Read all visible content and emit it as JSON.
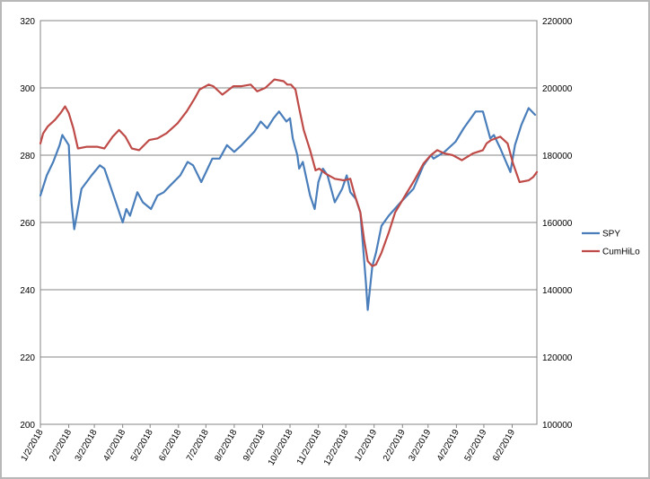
{
  "chart_data": {
    "type": "line",
    "y_axis_left": {
      "min": 200,
      "max": 320,
      "step": 20,
      "ticks": [
        "200",
        "220",
        "240",
        "260",
        "280",
        "300",
        "320"
      ]
    },
    "y_axis_right": {
      "min": 100000,
      "max": 220000,
      "step": 20000,
      "ticks": [
        "100000",
        "120000",
        "140000",
        "160000",
        "180000",
        "200000",
        "220000"
      ]
    },
    "x_tick_labels": [
      "1/2/2018",
      "2/2/2018",
      "3/2/2018",
      "4/2/2018",
      "5/2/2018",
      "6/2/2018",
      "7/2/2018",
      "8/2/2018",
      "9/2/2018",
      "10/2/2018",
      "11/2/2018",
      "12/2/2018",
      "1/2/2019",
      "2/2/2019",
      "3/2/2019",
      "4/2/2019",
      "5/2/2019",
      "6/2/2019"
    ],
    "grid": "horizontal",
    "legend_position": "right",
    "series": [
      {
        "name": "SPY",
        "color": "#4a7ebb",
        "axis": "left",
        "x": [
          "2018-01-02",
          "2018-01-09",
          "2018-01-16",
          "2018-01-23",
          "2018-01-26",
          "2018-02-02",
          "2018-02-05",
          "2018-02-08",
          "2018-02-16",
          "2018-02-27",
          "2018-03-08",
          "2018-03-13",
          "2018-03-23",
          "2018-04-02",
          "2018-04-06",
          "2018-04-10",
          "2018-04-18",
          "2018-04-24",
          "2018-05-03",
          "2018-05-10",
          "2018-05-17",
          "2018-05-24",
          "2018-06-04",
          "2018-06-12",
          "2018-06-18",
          "2018-06-27",
          "2018-07-09",
          "2018-07-17",
          "2018-07-25",
          "2018-08-02",
          "2018-08-10",
          "2018-08-17",
          "2018-08-24",
          "2018-08-31",
          "2018-09-07",
          "2018-09-14",
          "2018-09-20",
          "2018-09-28",
          "2018-10-02",
          "2018-10-05",
          "2018-10-10",
          "2018-10-12",
          "2018-10-16",
          "2018-10-24",
          "2018-10-29",
          "2018-11-02",
          "2018-11-07",
          "2018-11-12",
          "2018-11-20",
          "2018-11-28",
          "2018-12-03",
          "2018-12-07",
          "2018-12-13",
          "2018-12-18",
          "2018-12-24",
          "2018-12-26",
          "2018-12-31",
          "2019-01-04",
          "2019-01-10",
          "2019-01-18",
          "2019-01-31",
          "2019-02-14",
          "2019-02-25",
          "2019-03-05",
          "2019-03-08",
          "2019-03-20",
          "2019-04-01",
          "2019-04-10",
          "2019-04-23",
          "2019-05-01",
          "2019-05-06",
          "2019-05-09",
          "2019-05-13",
          "2019-05-20",
          "2019-05-31",
          "2019-06-05",
          "2019-06-12",
          "2019-06-20",
          "2019-06-27"
        ],
        "values": [
          268,
          274,
          278,
          283,
          286,
          283,
          266,
          258,
          270,
          274,
          277,
          276,
          268,
          260,
          264,
          262,
          269,
          266,
          264,
          268,
          269,
          271,
          274,
          278,
          277,
          272,
          279,
          279,
          283,
          281,
          283,
          285,
          287,
          290,
          288,
          291,
          293,
          290,
          291,
          285,
          280,
          276,
          278,
          268,
          264,
          272,
          276,
          274,
          266,
          270,
          274,
          269,
          267,
          263,
          242,
          234,
          247,
          251,
          259,
          262,
          266,
          270,
          277,
          280,
          279,
          281,
          284,
          288,
          293,
          293,
          288,
          285,
          286,
          282,
          275,
          283,
          289,
          294,
          292
        ]
      },
      {
        "name": "CumHiLo",
        "color": "#be4b48",
        "axis": "right",
        "x": [
          "2018-01-02",
          "2018-01-05",
          "2018-01-10",
          "2018-01-18",
          "2018-01-24",
          "2018-01-29",
          "2018-02-02",
          "2018-02-07",
          "2018-02-12",
          "2018-02-22",
          "2018-03-05",
          "2018-03-13",
          "2018-03-22",
          "2018-03-29",
          "2018-04-05",
          "2018-04-12",
          "2018-04-20",
          "2018-05-01",
          "2018-05-10",
          "2018-05-20",
          "2018-06-01",
          "2018-06-11",
          "2018-06-20",
          "2018-06-25",
          "2018-07-05",
          "2018-07-10",
          "2018-07-20",
          "2018-08-01",
          "2018-08-10",
          "2018-08-20",
          "2018-08-27",
          "2018-09-05",
          "2018-09-15",
          "2018-09-25",
          "2018-09-29",
          "2018-10-03",
          "2018-10-08",
          "2018-10-12",
          "2018-10-17",
          "2018-10-24",
          "2018-10-30",
          "2018-11-03",
          "2018-11-10",
          "2018-11-20",
          "2018-11-30",
          "2018-12-07",
          "2018-12-12",
          "2018-12-18",
          "2018-12-22",
          "2018-12-26",
          "2018-12-31",
          "2019-01-04",
          "2019-01-10",
          "2019-01-18",
          "2019-01-25",
          "2019-02-05",
          "2019-02-15",
          "2019-02-25",
          "2019-03-05",
          "2019-03-12",
          "2019-03-20",
          "2019-03-29",
          "2019-04-08",
          "2019-04-20",
          "2019-05-01",
          "2019-05-05",
          "2019-05-10",
          "2019-05-20",
          "2019-05-28",
          "2019-06-03",
          "2019-06-10",
          "2019-06-20",
          "2019-06-25",
          "2019-06-29"
        ],
        "values": [
          183500,
          186500,
          188500,
          190500,
          192500,
          194500,
          192500,
          188000,
          182000,
          182500,
          182500,
          182000,
          185500,
          187500,
          185500,
          182000,
          181500,
          184500,
          185000,
          186500,
          189500,
          193000,
          197000,
          199500,
          201000,
          200500,
          198000,
          200500,
          200500,
          201000,
          199000,
          200000,
          202500,
          202000,
          201000,
          201000,
          199500,
          194000,
          187500,
          181500,
          175500,
          176000,
          174500,
          173000,
          172500,
          173000,
          168000,
          163000,
          155000,
          148500,
          147000,
          147500,
          151000,
          157000,
          163000,
          168000,
          172500,
          177500,
          180000,
          181500,
          180500,
          180000,
          178500,
          180500,
          181500,
          183500,
          184500,
          185500,
          183500,
          177500,
          172000,
          172500,
          173500,
          175000
        ]
      }
    ]
  }
}
